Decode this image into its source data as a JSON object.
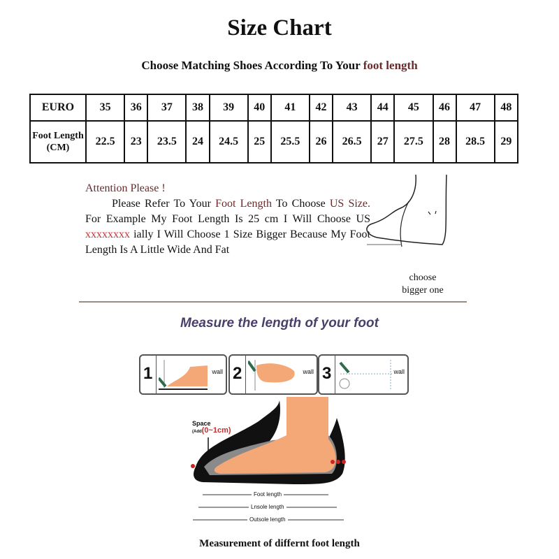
{
  "title": "Size Chart",
  "subtitle": {
    "prefix": "Choose Matching Shoes According To Your ",
    "highlight": "foot length"
  },
  "table": {
    "row_headers": [
      "EURO",
      "Foot Length (CM)"
    ],
    "euro": [
      "35",
      "36",
      "37",
      "38",
      "39",
      "40",
      "41",
      "42",
      "43",
      "44",
      "45",
      "46",
      "47",
      "48"
    ],
    "foot_length_cm": [
      "22.5",
      "23",
      "23.5",
      "24",
      "24.5",
      "25",
      "25.5",
      "26",
      "26.5",
      "27",
      "27.5",
      "28",
      "28.5",
      "29"
    ]
  },
  "attention": {
    "heading": "Attention Please !",
    "p1": "Please Refer To Your ",
    "p1_hl": "Foot Length",
    "p2": " To Choose ",
    "p2_hl": "US Size.",
    "p3": " For Example My Foot Length Is 25 cm I Will Choose US ",
    "p3_red": "xxxxxxxx",
    "p4": " ially I Will Choose 1 Size Bigger Because My Foot Length Is A Little Wide And Fat"
  },
  "choose_note": {
    "line1": "choose",
    "line2": "bigger one"
  },
  "measure_heading": "Measure the length of your foot",
  "steps": [
    {
      "num": "1",
      "wall": "wall"
    },
    {
      "num": "2",
      "wall": "wall"
    },
    {
      "num": "3",
      "wall": "wall"
    }
  ],
  "diagram": {
    "space_label": "Space",
    "space_add": "(Add",
    "space_range": "(0~1cm)",
    "foot_length": "Foot length",
    "insole_length": "Lnsole length",
    "outsole_length": "Outsole length"
  },
  "caption": "Measurement of differnt foot length",
  "colors": {
    "highlight_brown": "#6b2a2a",
    "red": "#d03030",
    "heading_purple": "#4a3f6b",
    "skin": "#f4a877"
  }
}
